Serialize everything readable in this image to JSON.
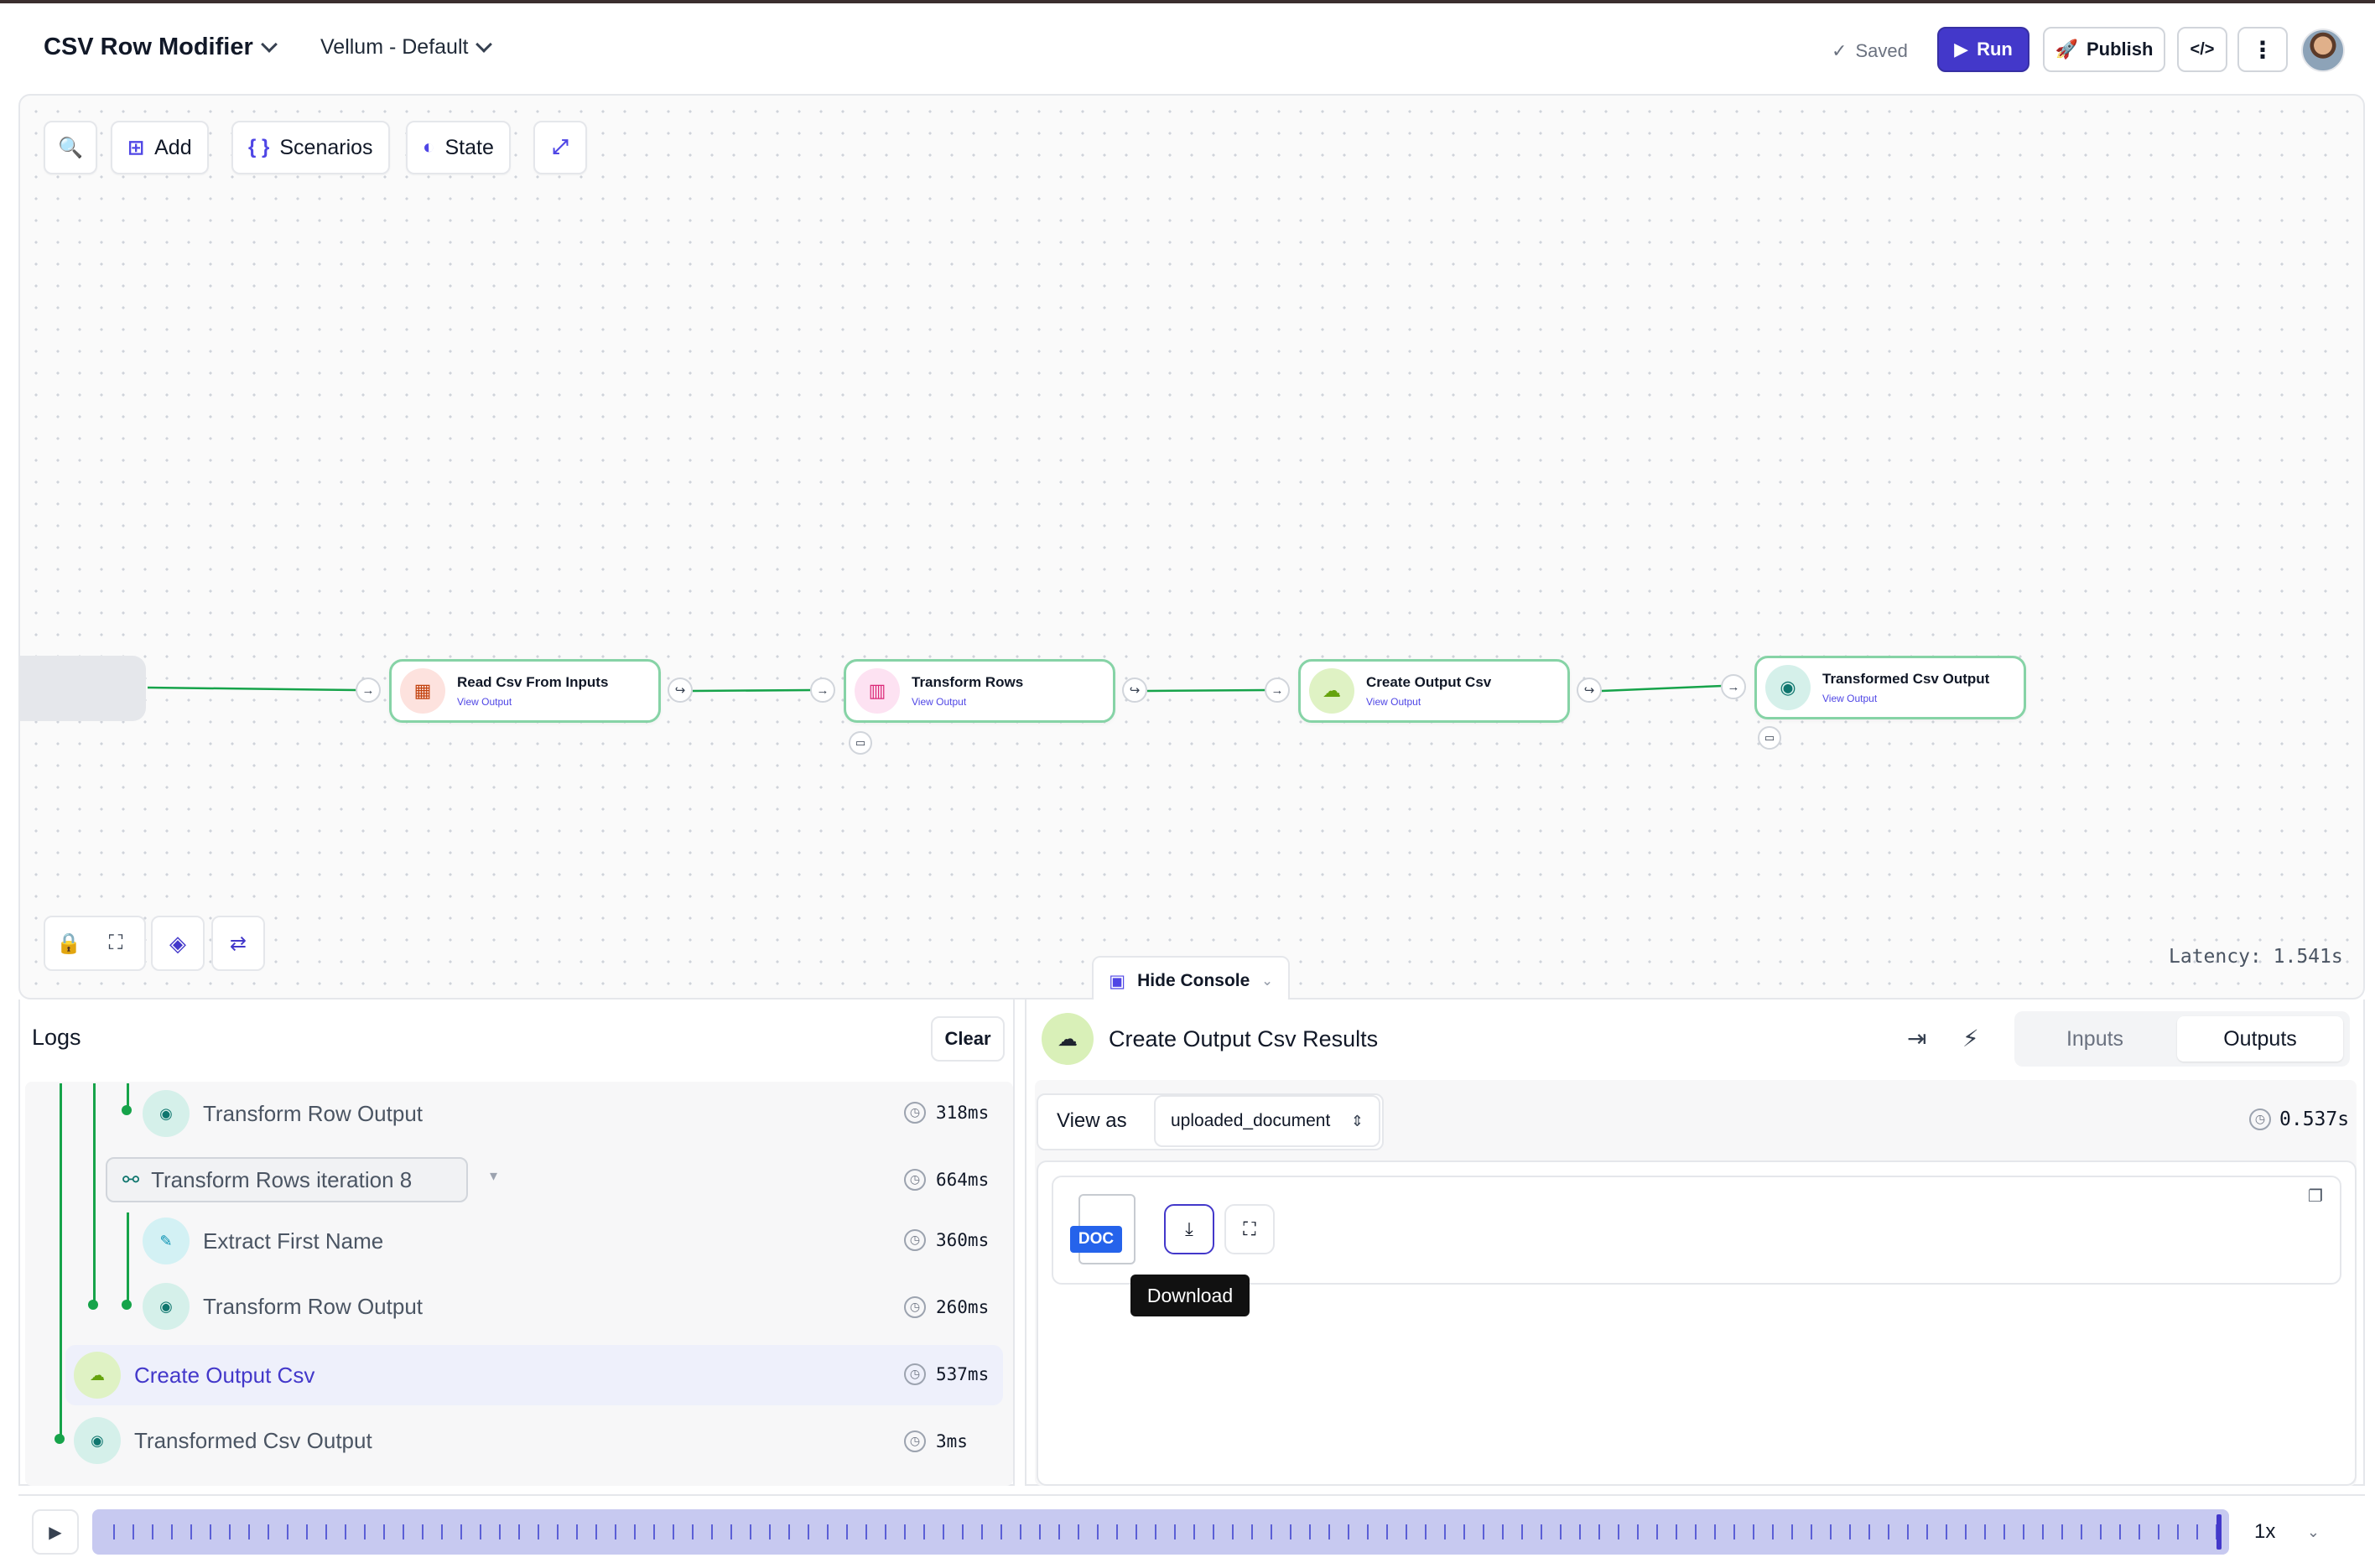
{
  "header": {
    "workflow_name": "CSV Row Modifier",
    "environment": "Vellum - Default",
    "save_status": "Saved",
    "run_label": "Run",
    "publish_label": "Publish",
    "code_icon": "</>"
  },
  "toolbar": {
    "add_label": "Add",
    "scenarios_label": "Scenarios",
    "state_label": "State"
  },
  "nodes": [
    {
      "title": "Read Csv From Inputs",
      "link": "View Output",
      "icon": "table-icon",
      "color": "#fde2de"
    },
    {
      "title": "Transform Rows",
      "link": "View Output",
      "icon": "map-icon",
      "color": "#fde2f2"
    },
    {
      "title": "Create Output Csv",
      "link": "View Output",
      "icon": "cloud-upload-icon",
      "color": "#dff2c4"
    },
    {
      "title": "Transformed Csv Output",
      "link": "View Output",
      "icon": "output-icon",
      "color": "#d5f0ea"
    }
  ],
  "canvas": {
    "latency": "Latency: 1.541s",
    "hide_console_label": "Hide Console"
  },
  "logs": {
    "title": "Logs",
    "clear_label": "Clear",
    "rows": [
      {
        "label": "Transform Row Output",
        "time": "318ms"
      },
      {
        "label": "Transform Rows iteration 8",
        "time": "664ms"
      },
      {
        "label": "Extract First Name",
        "time": "360ms"
      },
      {
        "label": "Transform Row Output",
        "time": "260ms"
      },
      {
        "label": "Create Output Csv",
        "time": "537ms"
      },
      {
        "label": "Transformed Csv Output",
        "time": "3ms"
      }
    ]
  },
  "results": {
    "title": "Create Output Csv Results",
    "tab_inputs": "Inputs",
    "tab_outputs": "Outputs",
    "active_tab": "Outputs",
    "view_as_label": "View as",
    "view_as_value": "uploaded_document",
    "duration": "0.537s",
    "doc_badge": "DOC",
    "tooltip": "Download"
  },
  "timeline": {
    "speed": "1x",
    "progress": 1.0
  },
  "colors": {
    "accent": "#4338ca",
    "edge": "#16a34a",
    "node_border": "#86d3a6"
  }
}
